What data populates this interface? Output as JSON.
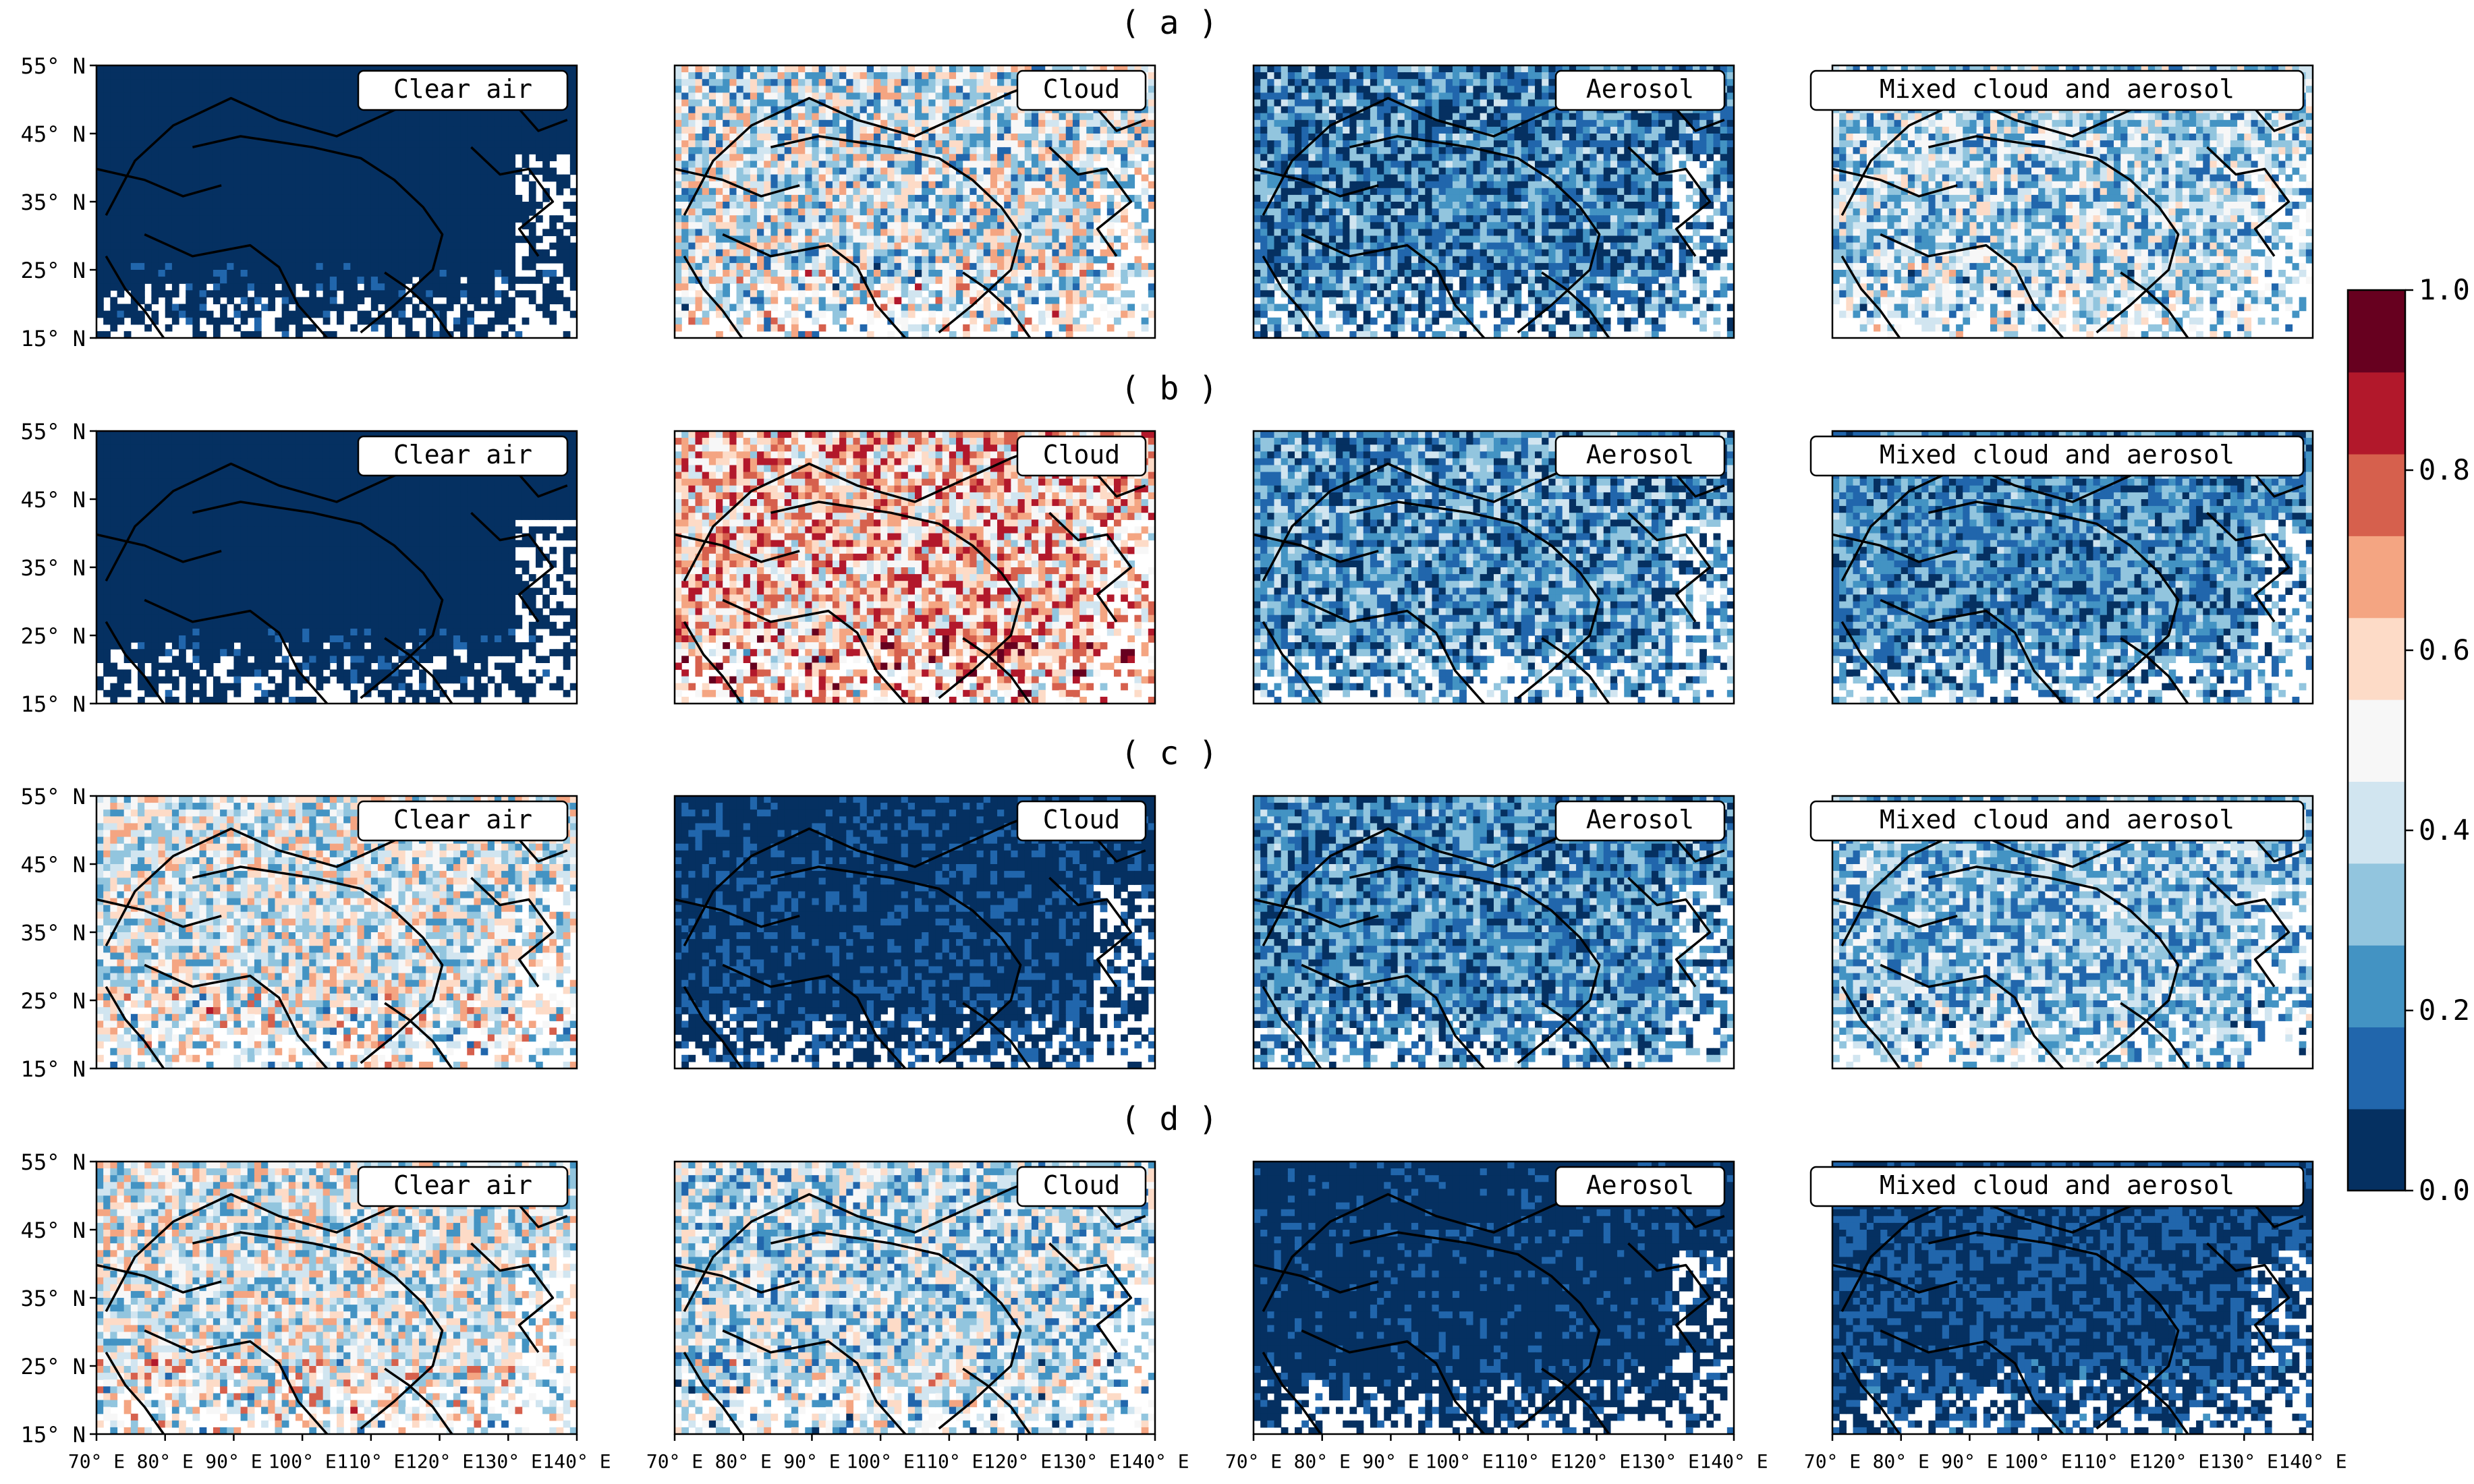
{
  "rows": [
    {
      "label": "( a )",
      "panels": [
        {
          "title": "Clear air",
          "mean": 0.04,
          "spread": 0.05
        },
        {
          "title": "Cloud",
          "mean": 0.42,
          "spread": 0.28
        },
        {
          "title": "Aerosol",
          "mean": 0.18,
          "spread": 0.2
        },
        {
          "title": "Mixed cloud and aerosol",
          "mean": 0.36,
          "spread": 0.22
        }
      ]
    },
    {
      "label": "( b )",
      "panels": [
        {
          "title": "Clear air",
          "mean": 0.04,
          "spread": 0.05
        },
        {
          "title": "Cloud",
          "mean": 0.62,
          "spread": 0.28
        },
        {
          "title": "Aerosol",
          "mean": 0.22,
          "spread": 0.2
        },
        {
          "title": "Mixed cloud and aerosol",
          "mean": 0.2,
          "spread": 0.17
        }
      ]
    },
    {
      "label": "( c )",
      "panels": [
        {
          "title": "Clear air",
          "mean": 0.45,
          "spread": 0.25
        },
        {
          "title": "Cloud",
          "mean": 0.06,
          "spread": 0.07
        },
        {
          "title": "Aerosol",
          "mean": 0.2,
          "spread": 0.18
        },
        {
          "title": "Mixed cloud and aerosol",
          "mean": 0.3,
          "spread": 0.2
        }
      ]
    },
    {
      "label": "( d )",
      "panels": [
        {
          "title": "Clear air",
          "mean": 0.45,
          "spread": 0.25
        },
        {
          "title": "Cloud",
          "mean": 0.38,
          "spread": 0.25
        },
        {
          "title": "Aerosol",
          "mean": 0.05,
          "spread": 0.06
        },
        {
          "title": "Mixed cloud and aerosol",
          "mean": 0.08,
          "spread": 0.09
        }
      ]
    }
  ],
  "axes": {
    "lat_ticks": [
      "55° N",
      "45° N",
      "35° N",
      "25° N",
      "15° N"
    ],
    "lon_ticks": [
      "70° E",
      "80° E",
      "90° E",
      "100° E",
      "110° E",
      "120° E",
      "130° E",
      "140° E"
    ]
  },
  "colorbar": {
    "ticks": [
      "1.0",
      "0.8",
      "0.6",
      "0.4",
      "0.2",
      "0.0"
    ],
    "range": [
      0,
      1
    ],
    "colors": [
      "#053061",
      "#2166ac",
      "#4393c3",
      "#92c5de",
      "#d1e5f0",
      "#f7f7f7",
      "#fddbc7",
      "#f4a582",
      "#d6604d",
      "#b2182b",
      "#67001f"
    ]
  }
}
